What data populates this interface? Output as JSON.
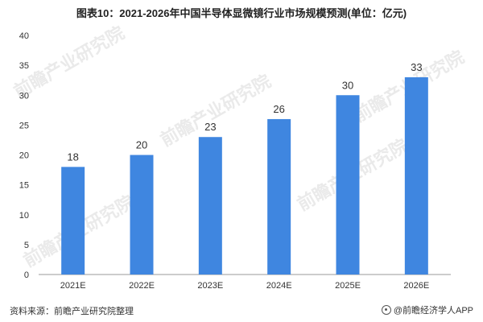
{
  "title": "图表10：2021-2026年中国半导体显微镜行业市场规模预测(单位：亿元)",
  "source_text": "资料来源：前瞻产业研究院整理",
  "brand_text": "@前瞻经济学人APP",
  "watermark_text": "前瞻产业研究院",
  "colors": {
    "bar": "#3f86e0",
    "axis": "#999999",
    "text": "#333333"
  },
  "chart_data": {
    "type": "bar",
    "title": "图表10：2021-2026年中国半导体显微镜行业市场规模预测(单位：亿元)",
    "xlabel": "",
    "ylabel": "",
    "categories": [
      "2021E",
      "2022E",
      "2023E",
      "2024E",
      "2025E",
      "2026E"
    ],
    "values": [
      18,
      20,
      23,
      26,
      30,
      33
    ],
    "ylim": [
      0,
      40
    ],
    "yticks": [
      0,
      5,
      10,
      15,
      20,
      25,
      30,
      35,
      40
    ],
    "grid": false,
    "legend": "none"
  }
}
